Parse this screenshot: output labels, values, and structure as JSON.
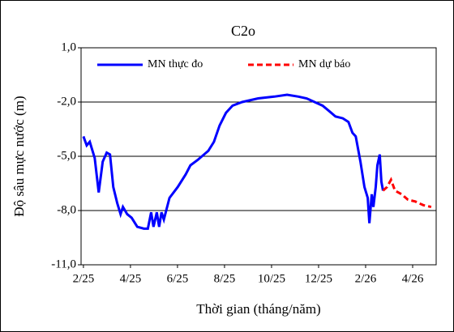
{
  "chart_data": {
    "type": "line",
    "title": "C2o",
    "x_label": "Thời gian  (tháng/năm)",
    "y_label": "Độ sâu mực nước (m)",
    "xlim": [
      -0.1,
      15
    ],
    "ylim": [
      -11,
      1
    ],
    "xticks": [
      {
        "value": 0,
        "label": "2/25"
      },
      {
        "value": 2,
        "label": "4/25"
      },
      {
        "value": 4,
        "label": "6/25"
      },
      {
        "value": 6,
        "label": "8/25"
      },
      {
        "value": 8,
        "label": "10/25"
      },
      {
        "value": 10,
        "label": "12/25"
      },
      {
        "value": 12,
        "label": "2/26"
      },
      {
        "value": 14,
        "label": "4/26"
      }
    ],
    "yticks": [
      {
        "value": 1,
        "label": "1,0"
      },
      {
        "value": -2,
        "label": "-2,0"
      },
      {
        "value": -5,
        "label": "-5,0"
      },
      {
        "value": -8,
        "label": "-8,0"
      },
      {
        "value": -11,
        "label": "-11,0"
      }
    ],
    "grid": true,
    "series": [
      {
        "name": "MN thực đo",
        "color": "#0000ff",
        "dash": false,
        "x": [
          0,
          0.14,
          0.27,
          0.48,
          0.65,
          0.82,
          0.99,
          1.13,
          1.27,
          1.44,
          1.58,
          1.68,
          1.86,
          2.05,
          2.29,
          2.57,
          2.74,
          2.88,
          2.98,
          3.12,
          3.22,
          3.32,
          3.42,
          3.66,
          4.01,
          4.35,
          4.55,
          4.86,
          5.31,
          5.55,
          5.79,
          6.06,
          6.34,
          6.75,
          7.43,
          8.12,
          8.66,
          9.14,
          9.49,
          9.83,
          10.17,
          10.45,
          10.72,
          11.03,
          11.27,
          11.44,
          11.58,
          11.68,
          11.78,
          11.95,
          12.09,
          12.16,
          12.26,
          12.33,
          12.43,
          12.5,
          12.6,
          12.67,
          12.74
        ],
        "values": [
          -3.9,
          -4.4,
          -4.2,
          -5.1,
          -7.0,
          -5.3,
          -4.8,
          -4.9,
          -6.7,
          -7.6,
          -8.2,
          -7.8,
          -8.2,
          -8.4,
          -8.9,
          -9.0,
          -9.0,
          -8.1,
          -8.9,
          -8.1,
          -8.9,
          -8.1,
          -8.5,
          -7.3,
          -6.7,
          -6.0,
          -5.5,
          -5.2,
          -4.7,
          -4.2,
          -3.3,
          -2.6,
          -2.2,
          -2.0,
          -1.8,
          -1.7,
          -1.6,
          -1.7,
          -1.8,
          -2.0,
          -2.2,
          -2.5,
          -2.8,
          -2.9,
          -3.1,
          -3.7,
          -3.9,
          -4.6,
          -5.3,
          -6.7,
          -7.3,
          -8.7,
          -7.1,
          -7.8,
          -6.7,
          -5.5,
          -4.9,
          -6.4,
          -6.9
        ]
      },
      {
        "name": "MN dự báo",
        "color": "#ff0000",
        "dash": true,
        "x": [
          12.74,
          12.91,
          13.08,
          13.25,
          13.53,
          13.8,
          14.11,
          14.45,
          14.79
        ],
        "values": [
          -6.9,
          -6.7,
          -6.3,
          -6.9,
          -7.1,
          -7.4,
          -7.5,
          -7.7,
          -7.8
        ]
      }
    ]
  }
}
